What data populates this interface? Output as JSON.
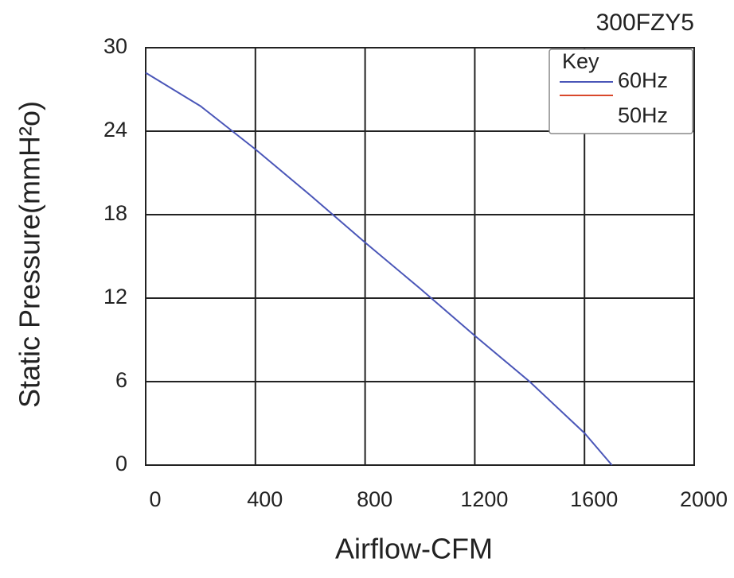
{
  "chart_data": {
    "type": "line",
    "title": "300FZY5",
    "x_label": "Airflow-CFM",
    "y_label": "Static Pressure(mmH²o)",
    "legend_title": "Key",
    "legend": "top-right",
    "grid": true,
    "x": [
      0,
      200,
      400,
      600,
      800,
      1000,
      1200,
      1400,
      1600,
      1700
    ],
    "series": [
      {
        "name": "60Hz",
        "color": "#4a56b8",
        "values": [
          28.2,
          25.8,
          22.7,
          19.4,
          16,
          12.7,
          9.3,
          6,
          2.3,
          0
        ]
      },
      {
        "name": "50Hz",
        "color": "#d9482b",
        "values": [
          null,
          null,
          null,
          null,
          null,
          null,
          null,
          null,
          null,
          null
        ]
      }
    ],
    "xlim": [
      0,
      2000
    ],
    "xticks": [
      0,
      400,
      800,
      1200,
      1600,
      2000
    ],
    "ylim": [
      0,
      30
    ],
    "yticks": [
      0,
      6,
      12,
      18,
      24,
      30
    ]
  }
}
